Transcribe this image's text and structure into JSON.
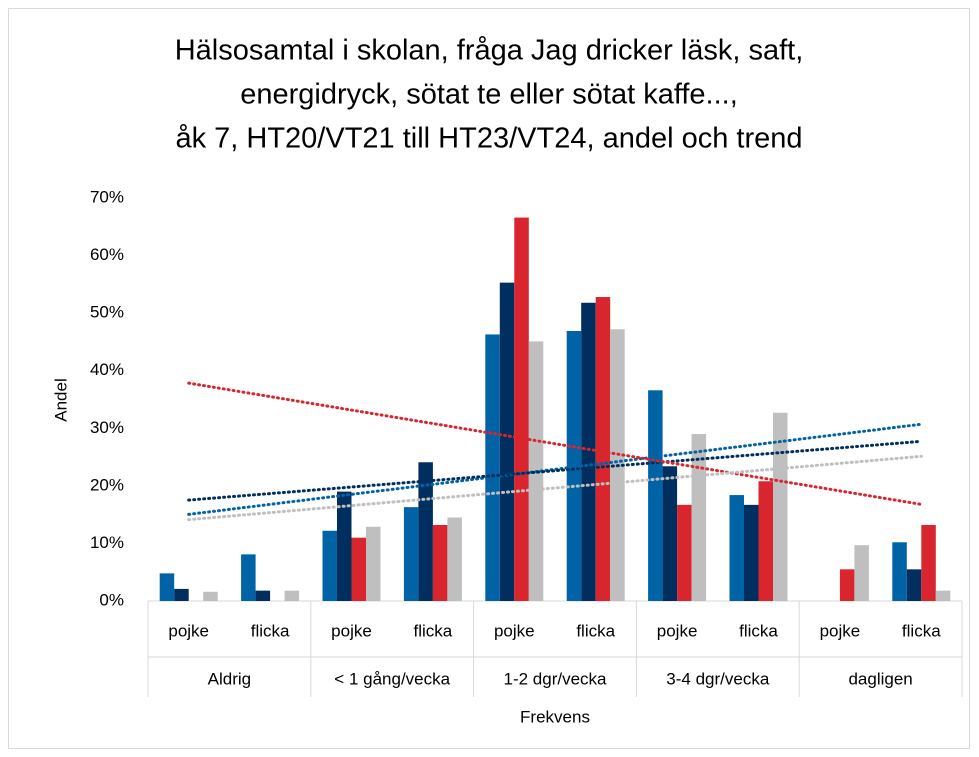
{
  "chart_data": {
    "type": "bar",
    "title": [
      "Hälsosamtal i skolan, fråga Jag dricker läsk, saft,",
      "energidryck, sötat te eller sötat kaffe...,",
      "åk 7, HT20/VT21 till HT23/VT24, andel och trend"
    ],
    "y_label": "Andel",
    "x_label": "Frekvens",
    "groups": [
      "Aldrig",
      "< 1 gång/vecka",
      "1-2 dgr/vecka",
      "3-4 dgr/vecka",
      "dagligen"
    ],
    "categories": [
      "pojke",
      "flicka",
      "pojke",
      "flicka",
      "pojke",
      "flicka",
      "pojke",
      "flicka",
      "pojke",
      "flicka"
    ],
    "series": [
      {
        "color": "#0063a6",
        "values": [
          4.8,
          8.1,
          12.2,
          16.3,
          46.3,
          46.9,
          36.6,
          18.4,
          null,
          10.2
        ]
      },
      {
        "color": "#002f5f",
        "values": [
          2.1,
          1.8,
          19.0,
          24.1,
          55.3,
          51.8,
          23.4,
          16.7,
          null,
          5.5
        ]
      },
      {
        "color": "#d9262e",
        "values": [
          null,
          null,
          11.0,
          13.2,
          66.6,
          52.8,
          16.7,
          20.8,
          5.5,
          13.2
        ]
      },
      {
        "color": "#bfbfbf",
        "values": [
          1.6,
          1.8,
          12.9,
          14.5,
          45.1,
          47.2,
          29.0,
          32.7,
          9.7,
          1.8
        ]
      }
    ],
    "trendline": true,
    "ylim": [
      0,
      70
    ],
    "yticks": [
      {
        "value": 0,
        "label": "0%"
      },
      {
        "value": 10,
        "label": "10%"
      },
      {
        "value": 20,
        "label": "20%"
      },
      {
        "value": 30,
        "label": "30%"
      },
      {
        "value": 40,
        "label": "40%"
      },
      {
        "value": 50,
        "label": "50%"
      },
      {
        "value": 60,
        "label": "60%"
      },
      {
        "value": 70,
        "label": "70%"
      }
    ]
  }
}
